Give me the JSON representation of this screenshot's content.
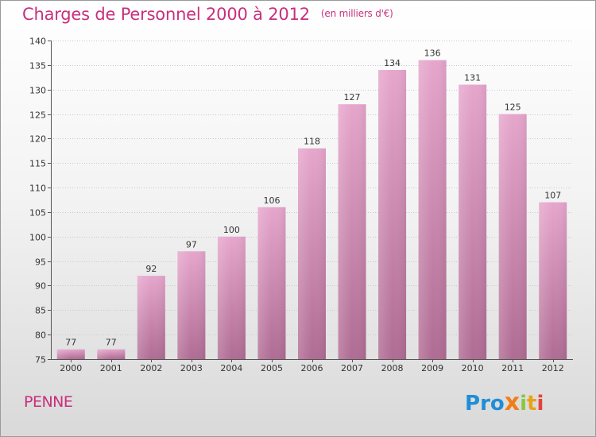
{
  "header": {
    "title": "Charges de Personnel 2000 à 2012",
    "subtitle": "(en milliers d'€)"
  },
  "footer": {
    "commune": "PENNE",
    "logo_text": "Proxiti",
    "logo_letters": [
      {
        "char": "P",
        "color": "#1f8ed6"
      },
      {
        "char": "r",
        "color": "#1f8ed6"
      },
      {
        "char": "o",
        "color": "#1f8ed6"
      },
      {
        "char": "x",
        "color": "#f07d1a"
      },
      {
        "char": "i",
        "color": "#8cc63f"
      },
      {
        "char": "t",
        "color": "#e8a21a"
      },
      {
        "char": "i",
        "color": "#e4423a"
      }
    ]
  },
  "colors": {
    "title": "#c8307c",
    "bar_light": "#e6a6cc",
    "bar_dark": "#b16d94",
    "grid": "#c8c8c8"
  },
  "chart_data": {
    "type": "bar",
    "title": "Charges de Personnel 2000 à 2012",
    "subtitle": "(en milliers d'€)",
    "categories": [
      "2000",
      "2001",
      "2002",
      "2003",
      "2004",
      "2005",
      "2006",
      "2007",
      "2008",
      "2009",
      "2010",
      "2011",
      "2012"
    ],
    "values": [
      77,
      77,
      92,
      97,
      100,
      106,
      118,
      127,
      134,
      136,
      131,
      125,
      107
    ],
    "ylim": [
      75,
      140
    ],
    "yticks": [
      75,
      80,
      85,
      90,
      95,
      100,
      105,
      110,
      115,
      120,
      125,
      130,
      135,
      140
    ],
    "grid": true,
    "xlabel": "",
    "ylabel": "",
    "data_labels": true
  }
}
